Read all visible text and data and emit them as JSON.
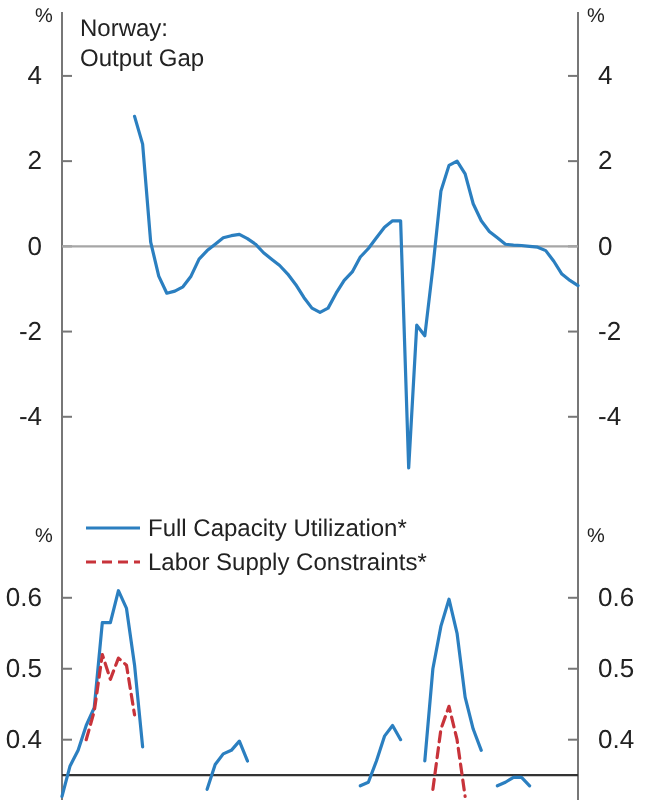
{
  "chart_data": [
    {
      "type": "line",
      "title": "Norway:\nOutput Gap",
      "ylabel": "%",
      "y2label": "%",
      "categories": [
        null,
        null,
        null,
        null,
        null,
        null,
        null,
        null,
        null,
        null,
        null,
        null,
        null,
        null,
        null,
        null,
        null,
        null,
        null,
        null,
        null,
        null,
        null,
        null,
        null,
        null,
        null,
        null,
        null,
        null,
        null,
        null,
        null,
        null,
        null,
        null,
        null,
        null,
        null,
        null,
        null,
        null,
        null,
        null,
        null,
        null,
        null,
        null,
        null,
        null,
        null,
        null,
        null,
        null,
        null,
        null,
        null,
        null,
        null,
        null,
        null,
        null,
        null,
        null,
        null
      ],
      "series": [
        {
          "color": "#2b7fc0",
          "values": [
            null,
            null,
            null,
            null,
            null,
            null,
            null,
            null,
            null,
            3.05,
            2.4,
            0.1,
            -0.7,
            -1.1,
            -1.05,
            -0.95,
            -0.7,
            -0.3,
            -0.1,
            0.05,
            0.2,
            0.25,
            0.28,
            0.18,
            0.05,
            -0.15,
            -0.3,
            -0.45,
            -0.65,
            -0.9,
            -1.2,
            -1.45,
            -1.55,
            -1.45,
            -1.1,
            -0.8,
            -0.6,
            -0.25,
            -0.05,
            0.2,
            0.45,
            0.6,
            0.6,
            -5.2,
            -1.85,
            -2.1,
            -0.5,
            1.3,
            1.9,
            2.0,
            1.7,
            1.0,
            0.6,
            0.35,
            0.2,
            0.05,
            0.03,
            0.02,
            0.0,
            -0.02,
            -0.1,
            -0.35,
            -0.65,
            -0.8,
            -0.92
          ]
        }
      ],
      "ylim": [
        -6,
        5.5
      ],
      "yticks": [
        -4,
        -2,
        0,
        2,
        4
      ],
      "y2lim": [
        -6,
        5.5
      ],
      "y2ticks": [
        -4,
        -2,
        0,
        2,
        4
      ],
      "ref_lines": [
        {
          "axis": "y",
          "value": 0,
          "color": "#a6a6a6"
        }
      ],
      "line_style": "solid",
      "legend": false
    },
    {
      "type": "line",
      "ylabel": "%",
      "y2label": "%",
      "categories": [
        null,
        null,
        null,
        null,
        null,
        null,
        null,
        null,
        null,
        null,
        null,
        null,
        null,
        null,
        null,
        null,
        null,
        null,
        null,
        null,
        null,
        null,
        null,
        null,
        null,
        null,
        null,
        null,
        null,
        null,
        null,
        null,
        null,
        null,
        null,
        null,
        null,
        null,
        null,
        null,
        null,
        null,
        null,
        null,
        null,
        null,
        null,
        null,
        null,
        null,
        null,
        null,
        null,
        null,
        null,
        null,
        null,
        null,
        null,
        null,
        null,
        null,
        null,
        null,
        null
      ],
      "series": [
        {
          "name": "Full Capacity Utilization*",
          "color": "#2b7fc0",
          "line_style": "solid",
          "values": [
            0.32,
            0.363,
            0.385,
            0.42,
            0.445,
            0.565,
            0.565,
            0.61,
            0.585,
            0.505,
            0.39,
            null,
            null,
            null,
            null,
            null,
            null,
            null,
            0.33,
            0.365,
            0.38,
            0.385,
            0.398,
            0.37,
            null,
            null,
            null,
            null,
            null,
            null,
            null,
            null,
            null,
            null,
            null,
            null,
            null,
            0.335,
            0.34,
            0.37,
            0.405,
            0.42,
            0.4,
            null,
            null,
            0.37,
            0.5,
            0.56,
            0.598,
            0.55,
            0.46,
            0.415,
            0.385,
            null,
            0.335,
            0.34,
            0.347,
            0.347,
            0.335,
            null,
            null,
            null,
            null,
            null,
            null
          ]
        },
        {
          "name": "Labor Supply Constraints*",
          "color": "#c8333a",
          "line_style": "dashed",
          "values": [
            null,
            null,
            null,
            0.4,
            0.44,
            0.52,
            0.485,
            0.515,
            0.505,
            0.435,
            null,
            null,
            null,
            null,
            null,
            null,
            null,
            null,
            null,
            null,
            null,
            null,
            null,
            null,
            null,
            null,
            null,
            null,
            null,
            null,
            null,
            null,
            null,
            null,
            null,
            null,
            null,
            null,
            null,
            null,
            null,
            null,
            null,
            null,
            null,
            null,
            0.33,
            0.415,
            0.447,
            0.4,
            0.32,
            null,
            null,
            null,
            null,
            null,
            null,
            null,
            null,
            null,
            null,
            null,
            null,
            null,
            null
          ]
        }
      ],
      "ylim": [
        0.315,
        0.735
      ],
      "yticks": [
        0.4,
        0.5,
        0.6
      ],
      "y2lim": [
        0.315,
        0.735
      ],
      "y2ticks": [
        0.4,
        0.5,
        0.6
      ],
      "ref_lines": [
        {
          "axis": "y",
          "value": 0.35,
          "color": "#333333"
        }
      ],
      "legend": "top left"
    }
  ]
}
